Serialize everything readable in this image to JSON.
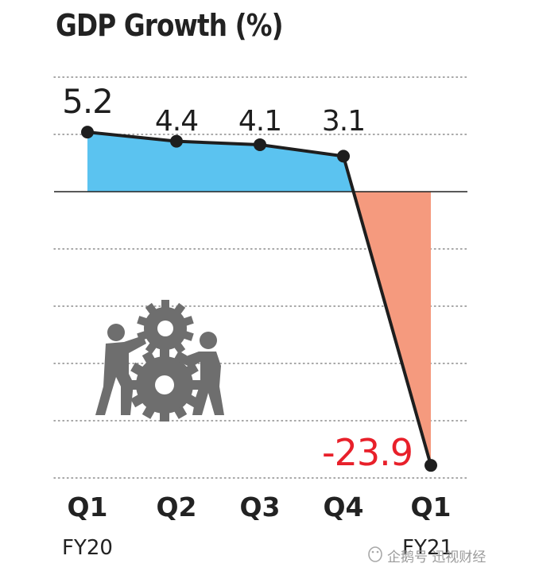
{
  "chart_data": {
    "type": "line",
    "title": "GDP Growth (%)",
    "categories": [
      "Q1",
      "Q2",
      "Q3",
      "Q4",
      "Q1"
    ],
    "group_labels": [
      "FY20",
      "FY21"
    ],
    "values": [
      5.2,
      4.4,
      4.1,
      3.1,
      -23.9
    ],
    "value_labels": [
      "5.2",
      "4.4",
      "4.1",
      "3.1",
      "-23.9"
    ],
    "ylim": [
      -25,
      10
    ],
    "grid": true,
    "colors": {
      "positive_fill": "#5bc3f0",
      "negative_fill": "#f59a7e",
      "line": "#1e1e1e",
      "negative_label": "#e8202a",
      "label": "#1e1e1e"
    },
    "illustration": "two-people-pushing-gears-icon"
  },
  "watermark": {
    "text": "企鹅号 迅视财经",
    "icon": "penguin-logo-icon"
  }
}
